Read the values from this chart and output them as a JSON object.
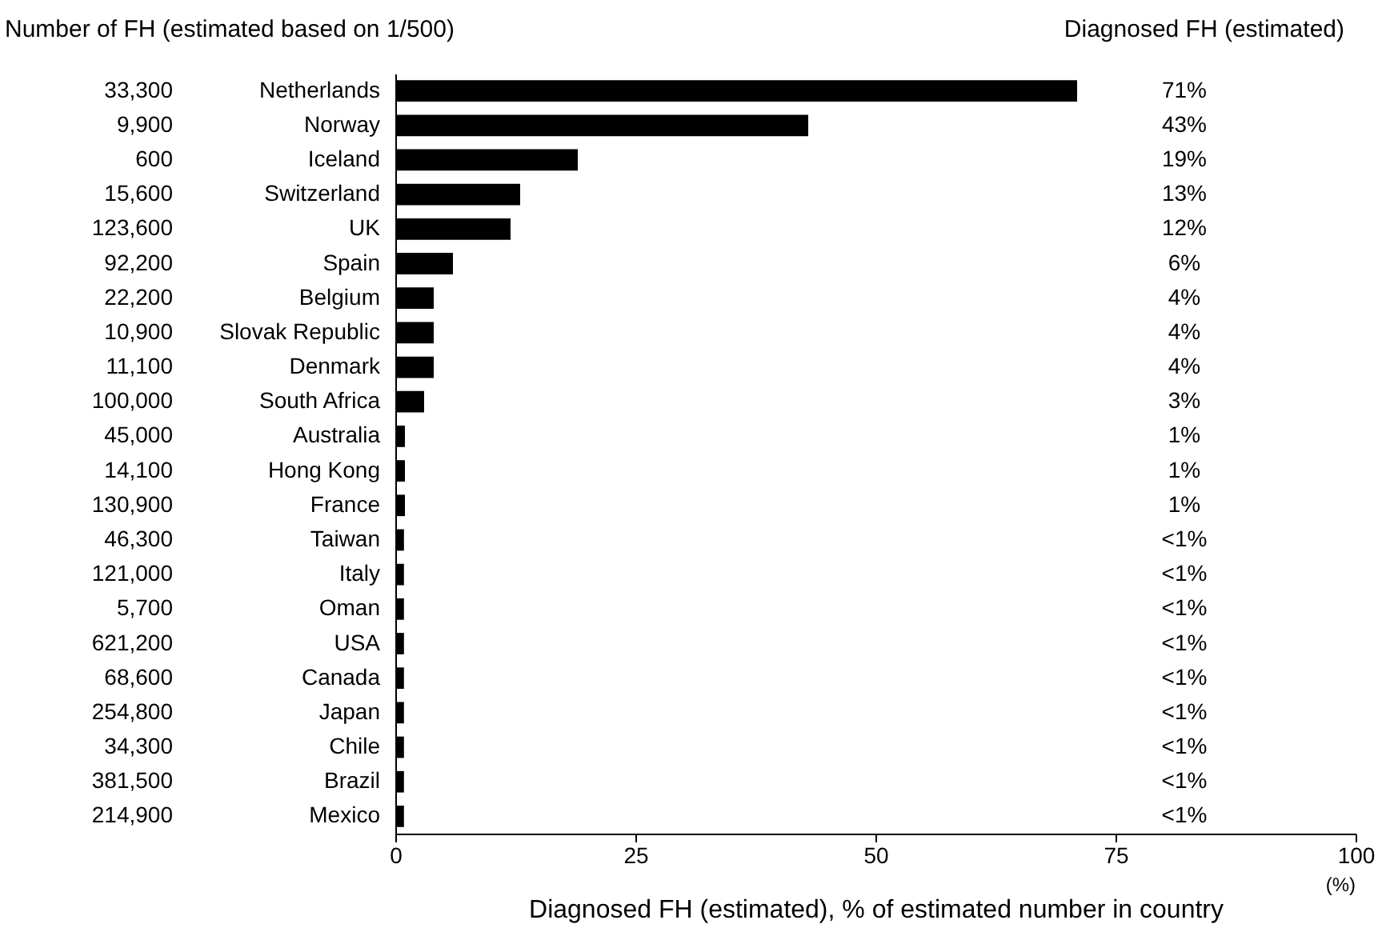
{
  "chart_data": {
    "type": "bar",
    "orientation": "horizontal",
    "xlabel": "Diagnosed FH (estimated), % of estimated number in country",
    "categories": [
      "Netherlands",
      "Norway",
      "Iceland",
      "Switzerland",
      "UK",
      "Spain",
      "Belgium",
      "Slovak Republic",
      "Denmark",
      "South Africa",
      "Australia",
      "Hong Kong",
      "France",
      "Taiwan",
      "Italy",
      "Oman",
      "USA",
      "Canada",
      "Japan",
      "Chile",
      "Brazil",
      "Mexico"
    ],
    "values": [
      71,
      43,
      19,
      13,
      12,
      6,
      4,
      4,
      4,
      3,
      1,
      1,
      1,
      0.9,
      0.9,
      0.9,
      0.9,
      0.9,
      0.9,
      0.9,
      0.9,
      0.9
    ],
    "value_labels": [
      "71%",
      "43%",
      "19%",
      "13%",
      "12%",
      "6%",
      "4%",
      "4%",
      "4%",
      "3%",
      "1%",
      "1%",
      "1%",
      "<1%",
      "<1%",
      "<1%",
      "<1%",
      "<1%",
      "<1%",
      "<1%",
      "<1%",
      "<1%"
    ],
    "color": "#000000",
    "xlim": [
      0,
      100
    ],
    "xticks": [
      0,
      25,
      50,
      75,
      100
    ],
    "grid": false,
    "annotations": [
      "Number of FH (estimated based on 1/500)",
      "Diagnosed FH (estimated)",
      "(%)",
      "33,300",
      "9,900",
      "600",
      "15,600",
      "123,600",
      "92,200",
      "22,200",
      "10,900",
      "11,100",
      "100,000",
      "45,000",
      "14,100",
      "130,900",
      "46,300",
      "121,000",
      "5,700",
      "621,200",
      "68,600",
      "254,800",
      "34,300",
      "381,500",
      "214,900"
    ]
  }
}
